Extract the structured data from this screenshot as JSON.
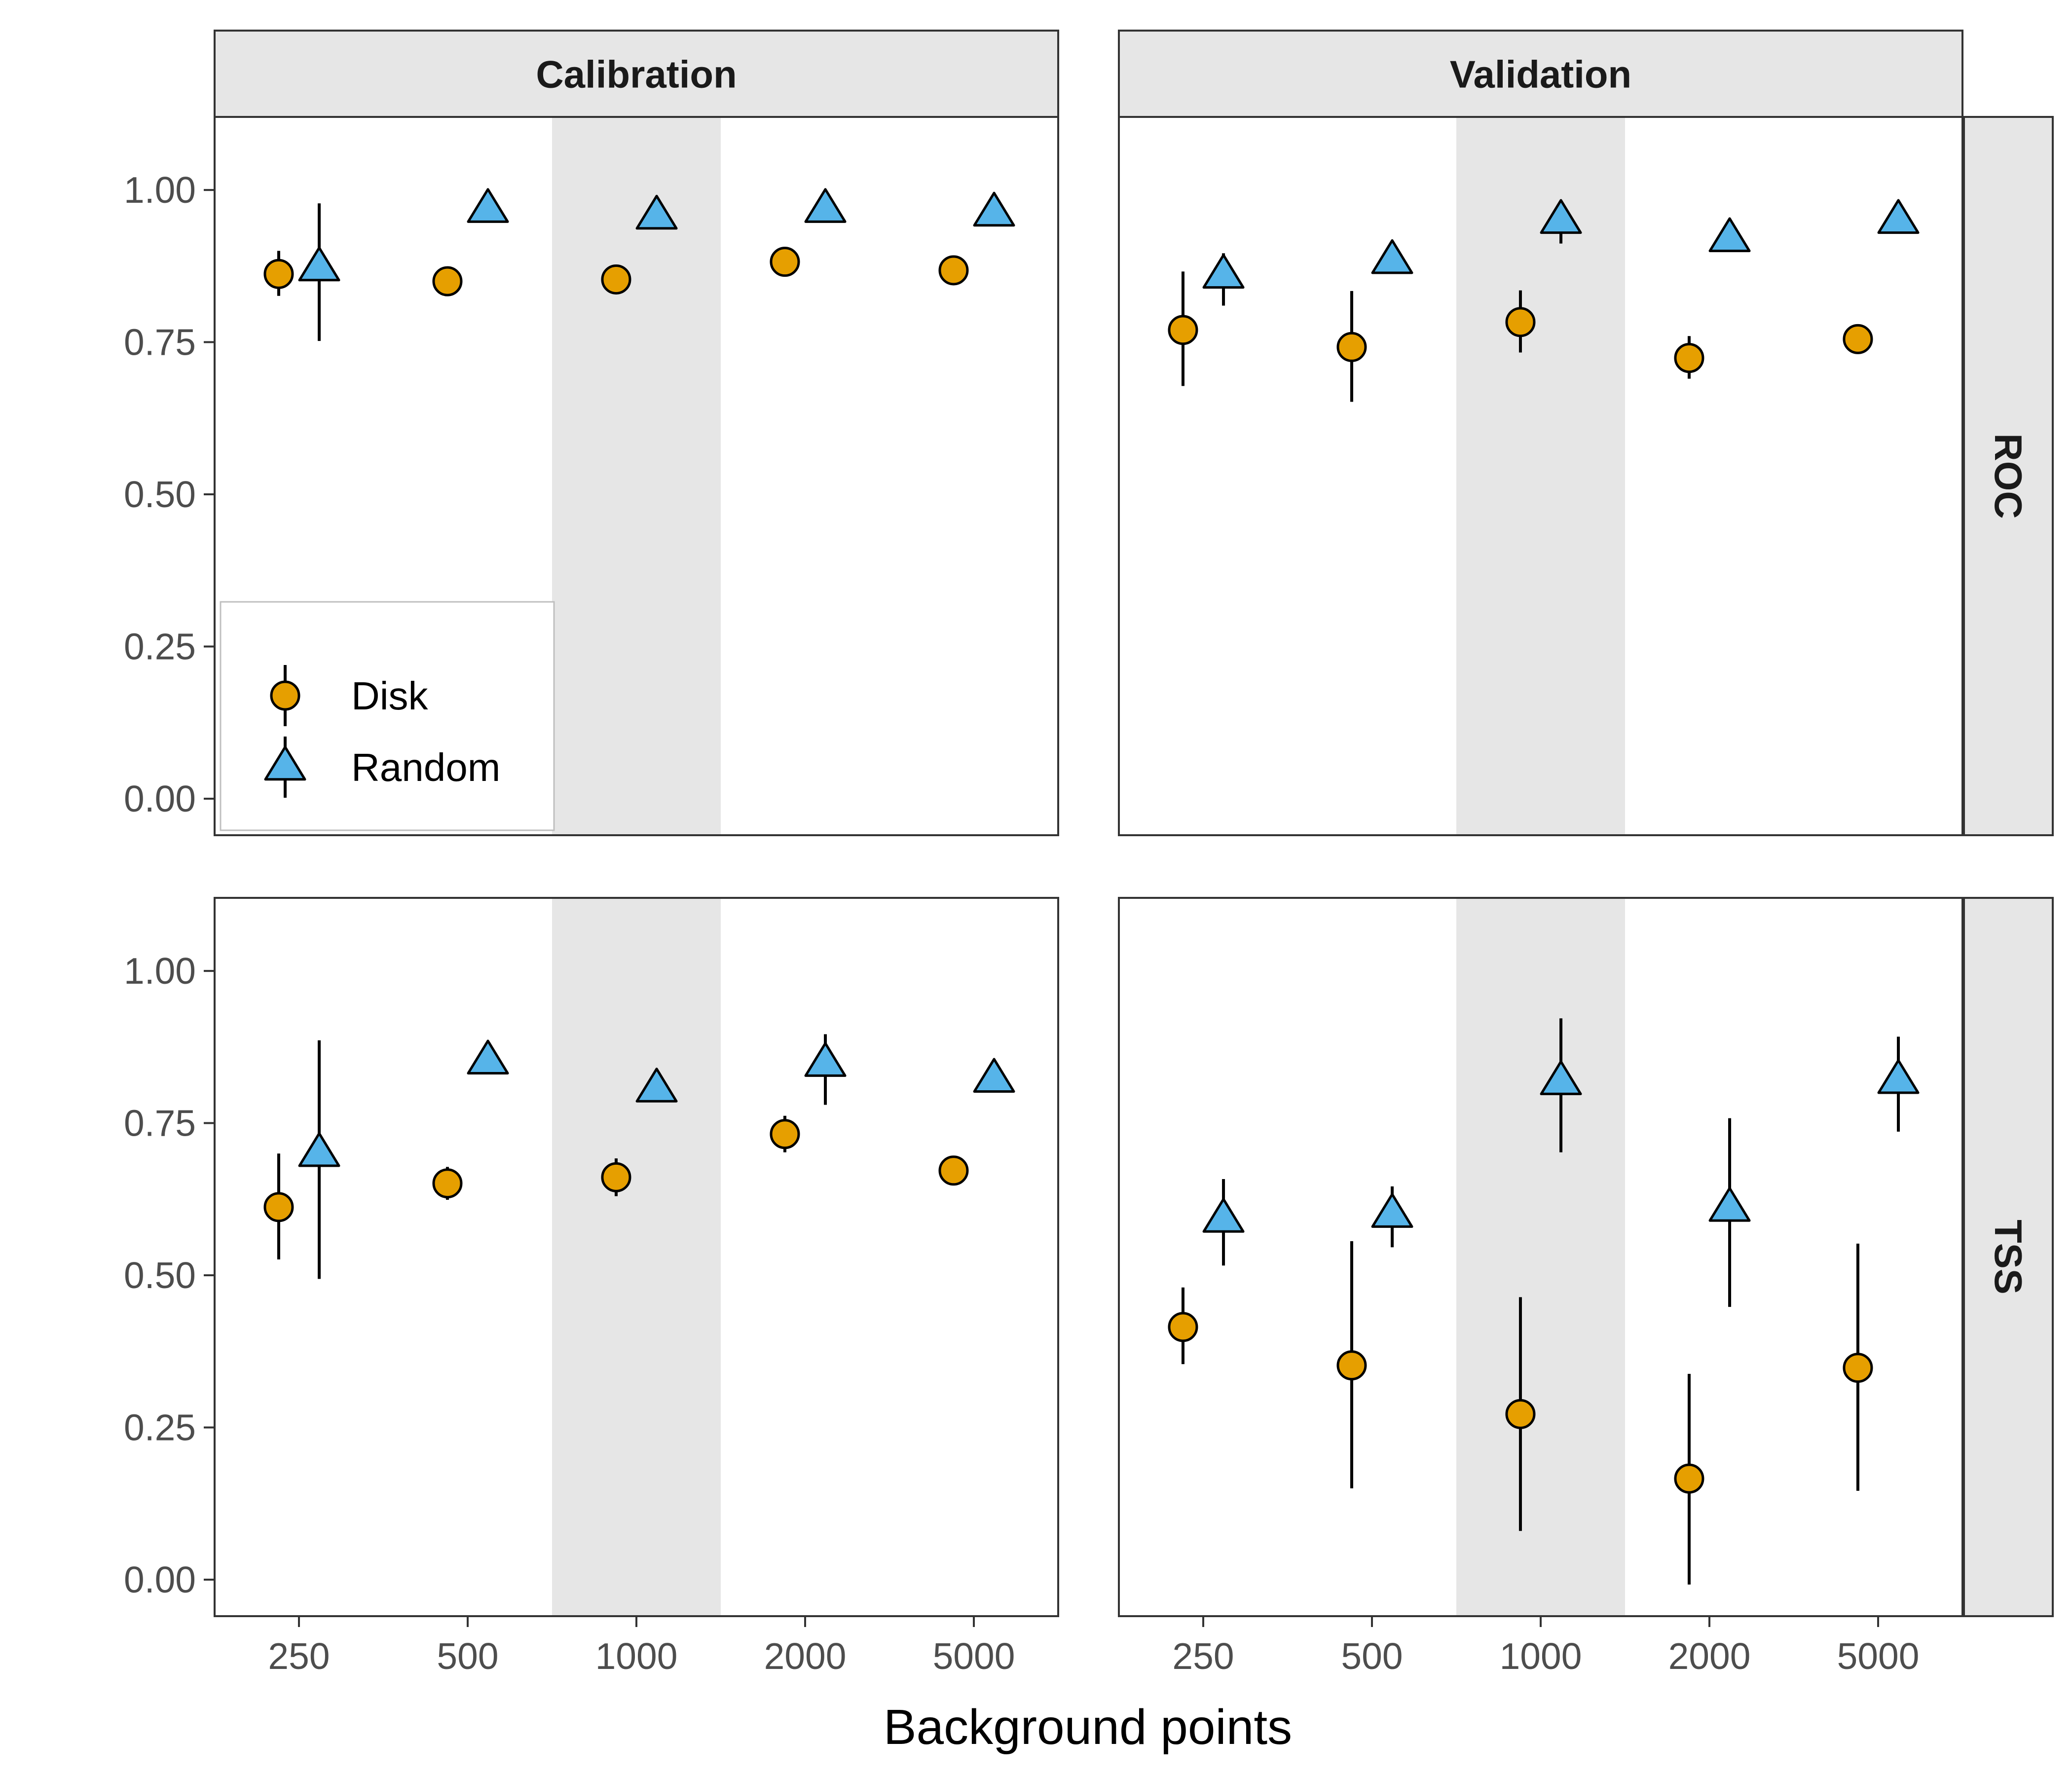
{
  "chart_data": {
    "type": "scatter",
    "xlabel": "Background points",
    "ylabel": "",
    "x_categories": [
      "250",
      "500",
      "1000",
      "2000",
      "5000"
    ],
    "y_ticks": [
      "0.00",
      "0.25",
      "0.50",
      "0.75",
      "1.00"
    ],
    "ylim": [
      -0.06,
      1.12
    ],
    "column_strips": [
      "Calibration",
      "Validation"
    ],
    "row_strips": [
      "ROC",
      "TSS"
    ],
    "highlight_category": "1000",
    "grid": false,
    "legend_placement": "bottom-left",
    "series": [
      {
        "name": "Disk",
        "shape": "circle",
        "color": "#E69F00"
      },
      {
        "name": "Random",
        "shape": "triangle",
        "color": "#56B4E9"
      }
    ],
    "panels": [
      {
        "row": "ROC",
        "column": "Calibration",
        "series": {
          "Disk": {
            "y": [
              0.862,
              0.85,
              0.853,
              0.882,
              0.868
            ],
            "lo": [
              0.826,
              0.845,
              0.848,
              0.866,
              0.862
            ],
            "hi": [
              0.9,
              0.856,
              0.859,
              0.9,
              0.874
            ]
          },
          "Random": {
            "y": [
              0.872,
              0.968,
              0.957,
              0.968,
              0.962
            ],
            "lo": [
              0.752,
              0.962,
              0.951,
              0.96,
              0.956
            ],
            "hi": [
              0.978,
              0.974,
              0.963,
              0.976,
              0.968
            ]
          }
        }
      },
      {
        "row": "ROC",
        "column": "Validation",
        "series": {
          "Disk": {
            "y": [
              0.77,
              0.742,
              0.783,
              0.724,
              0.755
            ],
            "lo": [
              0.678,
              0.652,
              0.733,
              0.69,
              0.75
            ],
            "hi": [
              0.866,
              0.834,
              0.835,
              0.76,
              0.76
            ]
          },
          "Random": {
            "y": [
              0.86,
              0.884,
              0.95,
              0.92,
              0.95
            ],
            "lo": [
              0.81,
              0.878,
              0.912,
              0.914,
              0.944
            ],
            "hi": [
              0.896,
              0.89,
              0.962,
              0.926,
              0.956
            ]
          }
        }
      },
      {
        "row": "TSS",
        "column": "Calibration",
        "series": {
          "Disk": {
            "y": [
              0.612,
              0.651,
              0.661,
              0.732,
              0.672
            ],
            "lo": [
              0.526,
              0.624,
              0.63,
              0.702,
              0.66
            ],
            "hi": [
              0.7,
              0.678,
              0.692,
              0.762,
              0.684
            ]
          },
          "Random": {
            "y": [
              0.7,
              0.852,
              0.806,
              0.848,
              0.822
            ],
            "lo": [
              0.494,
              0.846,
              0.8,
              0.78,
              0.816
            ],
            "hi": [
              0.886,
              0.858,
              0.812,
              0.896,
              0.828
            ]
          }
        }
      },
      {
        "row": "TSS",
        "column": "Validation",
        "series": {
          "Disk": {
            "y": [
              0.415,
              0.352,
              0.272,
              0.166,
              0.348
            ],
            "lo": [
              0.354,
              0.15,
              0.08,
              -0.008,
              0.146
            ],
            "hi": [
              0.48,
              0.556,
              0.464,
              0.338,
              0.552
            ]
          },
          "Random": {
            "y": [
              0.592,
              0.6,
              0.818,
              0.61,
              0.82
            ],
            "lo": [
              0.516,
              0.546,
              0.702,
              0.448,
              0.736
            ],
            "hi": [
              0.658,
              0.646,
              0.922,
              0.758,
              0.892
            ]
          }
        }
      }
    ]
  }
}
